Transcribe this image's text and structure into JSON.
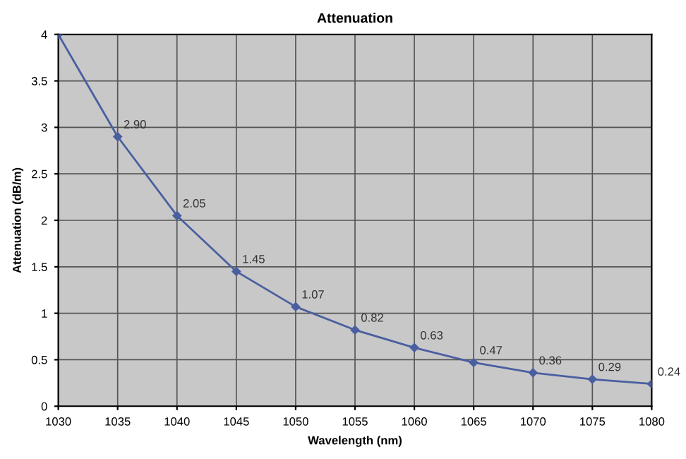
{
  "chart_data": {
    "type": "line",
    "title": "Attenuation",
    "xlabel": "Wavelength (nm)",
    "ylabel": "Attenuation (dB/m)",
    "x": [
      1030,
      1035,
      1040,
      1045,
      1050,
      1055,
      1060,
      1065,
      1070,
      1075,
      1080
    ],
    "series": [
      {
        "color": "#4a5fa0",
        "values": [
          4.0,
          2.9,
          2.05,
          1.45,
          1.07,
          0.82,
          0.63,
          0.47,
          0.36,
          0.29,
          0.24
        ],
        "value_labels": [
          null,
          "2.90",
          "2.05",
          "1.45",
          "1.07",
          "0.82",
          "0.63",
          "0.47",
          "0.36",
          "0.29",
          "0.24"
        ]
      }
    ],
    "xlim": [
      1030,
      1080
    ],
    "xticks": [
      1030,
      1035,
      1040,
      1045,
      1050,
      1055,
      1060,
      1065,
      1070,
      1075,
      1080
    ],
    "ylim": [
      0,
      4
    ],
    "yticks": [
      0,
      0.5,
      1,
      1.5,
      2,
      2.5,
      3,
      3.5,
      4
    ],
    "grid": true,
    "marker": "diamond",
    "line_style": "solid"
  }
}
